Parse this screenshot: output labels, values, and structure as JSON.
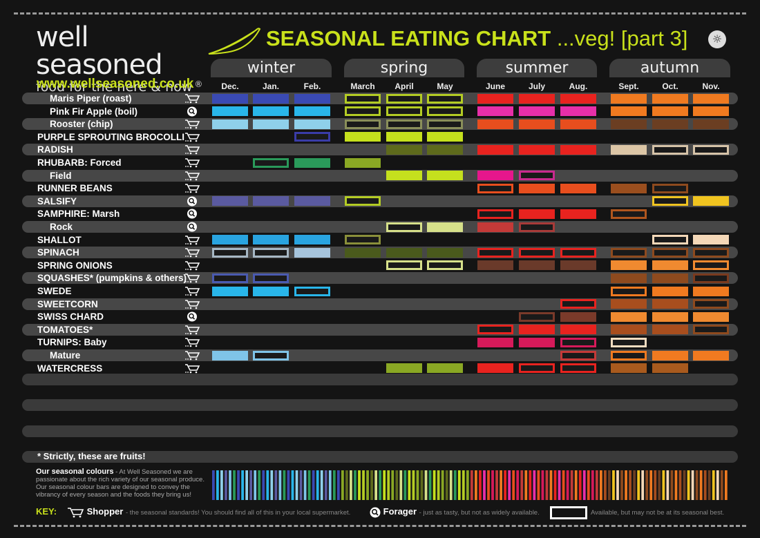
{
  "brand": {
    "name": "well seasoned",
    "tagline": "food for the here & now",
    "reg": "®",
    "website": "www.wellseasoned.co.uk"
  },
  "header": {
    "title": "SEASONAL EATING CHART",
    "subtitle": "...veg! [part 3]"
  },
  "seasons": [
    "winter",
    "spring",
    "summer",
    "autumn"
  ],
  "months": [
    "Dec.",
    "Jan.",
    "Feb.",
    "March",
    "April",
    "May",
    "June",
    "July",
    "Aug.",
    "Sept.",
    "Oct.",
    "Nov."
  ],
  "rows": [
    {
      "label": "Maris Piper (roast)",
      "sub": true,
      "icon": "cart-icon",
      "cells": [
        [
          "f",
          "#3a4ab3"
        ],
        [
          "f",
          "#3a4ab3"
        ],
        [
          "f",
          "#3a4ab3"
        ],
        [
          "o",
          "#b4cc24"
        ],
        [
          "o",
          "#b4cc24"
        ],
        [
          "o",
          "#b4cc24"
        ],
        [
          "f",
          "#e8231f"
        ],
        [
          "f",
          "#e8231f"
        ],
        [
          "f",
          "#e8231f"
        ],
        [
          "f",
          "#f07a20"
        ],
        [
          "f",
          "#f07a20"
        ],
        [
          "f",
          "#f07a20"
        ]
      ]
    },
    {
      "label": "Pink Fir Apple (boil)",
      "sub": true,
      "icon": "forager-icon",
      "cells": [
        [
          "f",
          "#29b6ea"
        ],
        [
          "f",
          "#29b6ea"
        ],
        [
          "f",
          "#29b6ea"
        ],
        [
          "o",
          "#b4cc24"
        ],
        [
          "o",
          "#b4cc24"
        ],
        [
          "o",
          "#b4cc24"
        ],
        [
          "f",
          "#e72fa9"
        ],
        [
          "f",
          "#e72fa9"
        ],
        [
          "f",
          "#e72fa9"
        ],
        [
          "f",
          "#f07a20"
        ],
        [
          "f",
          "#f07a20"
        ],
        [
          "f",
          "#f07a20"
        ]
      ]
    },
    {
      "label": "Rooster (chip)",
      "sub": true,
      "icon": "cart-icon",
      "cells": [
        [
          "f",
          "#8fd0ea"
        ],
        [
          "f",
          "#8fd0ea"
        ],
        [
          "f",
          "#8fd0ea"
        ],
        [
          "o",
          "#8a8f5a"
        ],
        [
          "o",
          "#8a8f5a"
        ],
        [
          "o",
          "#8a8f5a"
        ],
        [
          "f",
          "#e84e1e"
        ],
        [
          "f",
          "#e84e1e"
        ],
        [
          "f",
          "#e84e1e"
        ],
        [
          "f",
          "#6b3e22"
        ],
        [
          "f",
          "#6b3e22"
        ],
        [
          "f",
          "#6b3e22"
        ]
      ]
    },
    {
      "label": "PURPLE SPROUTING BROCOLLI",
      "sub": false,
      "icon": "cart-icon",
      "cells": [
        null,
        null,
        [
          "o",
          "#3a3ca8"
        ],
        [
          "f",
          "#c5e01d"
        ],
        [
          "f",
          "#c5e01d"
        ],
        [
          "f",
          "#c5e01d"
        ],
        null,
        null,
        null,
        null,
        null,
        null
      ]
    },
    {
      "label": "RADISH",
      "sub": false,
      "icon": "cart-icon",
      "cells": [
        null,
        null,
        null,
        null,
        [
          "f",
          "#5e6a1c"
        ],
        [
          "f",
          "#5e6a1c"
        ],
        [
          "f",
          "#e8231f"
        ],
        [
          "f",
          "#e8231f"
        ],
        [
          "f",
          "#e8231f"
        ],
        [
          "f",
          "#dcc6a6"
        ],
        [
          "o",
          "#d6c3a8"
        ],
        [
          "o",
          "#d6c3a8"
        ]
      ]
    },
    {
      "label": "RHUBARB: Forced",
      "sub": false,
      "icon": "cart-icon",
      "cells": [
        null,
        [
          "o",
          "#2a9a5a"
        ],
        [
          "f",
          "#2a9a5a"
        ],
        [
          "f",
          "#8aa824"
        ],
        null,
        null,
        null,
        null,
        null,
        null,
        null,
        null
      ]
    },
    {
      "label": "Field",
      "sub": true,
      "icon": "cart-icon",
      "cells": [
        null,
        null,
        null,
        null,
        [
          "f",
          "#c5e01d"
        ],
        [
          "f",
          "#c5e01d"
        ],
        [
          "f",
          "#e6168c"
        ],
        [
          "o",
          "#c92a8f"
        ],
        null,
        null,
        null,
        null
      ]
    },
    {
      "label": "RUNNER BEANS",
      "sub": false,
      "icon": "cart-icon",
      "cells": [
        null,
        null,
        null,
        null,
        null,
        null,
        [
          "o",
          "#e84e1e"
        ],
        [
          "f",
          "#e84e1e"
        ],
        [
          "f",
          "#e84e1e"
        ],
        [
          "f",
          "#9a4e1e"
        ],
        [
          "o",
          "#8e4a1e"
        ],
        null
      ]
    },
    {
      "label": "SALSIFY",
      "sub": false,
      "icon": "forager-icon",
      "cells": [
        [
          "f",
          "#5a5aa0"
        ],
        [
          "f",
          "#5a5aa0"
        ],
        [
          "f",
          "#5a5aa0"
        ],
        [
          "o",
          "#b4cc24"
        ],
        null,
        null,
        null,
        null,
        null,
        null,
        [
          "o",
          "#f0c420"
        ],
        [
          "f",
          "#f0c420"
        ]
      ]
    },
    {
      "label": "SAMPHIRE: Marsh",
      "sub": false,
      "icon": "forager-icon",
      "cells": [
        null,
        null,
        null,
        null,
        null,
        null,
        [
          "o",
          "#e8231f"
        ],
        [
          "f",
          "#e8231f"
        ],
        [
          "f",
          "#e8231f"
        ],
        [
          "o",
          "#b0561e"
        ],
        null,
        null
      ]
    },
    {
      "label": "Rock",
      "sub": true,
      "icon": "forager-icon",
      "cells": [
        null,
        null,
        null,
        null,
        [
          "o",
          "#d6e08a"
        ],
        [
          "f",
          "#d6e08a"
        ],
        [
          "f",
          "#c43a38"
        ],
        [
          "o",
          "#a83a38"
        ],
        null,
        null,
        null,
        null
      ]
    },
    {
      "label": "SHALLOT",
      "sub": false,
      "icon": "cart-icon",
      "cells": [
        [
          "f",
          "#29a4e0"
        ],
        [
          "f",
          "#29a4e0"
        ],
        [
          "f",
          "#29a4e0"
        ],
        [
          "o",
          "#8a8f3a"
        ],
        null,
        null,
        null,
        null,
        null,
        null,
        [
          "o",
          "#f4d8b8"
        ],
        [
          "f",
          "#f4d8b8"
        ]
      ]
    },
    {
      "label": "SPINACH",
      "sub": false,
      "icon": "cart-icon",
      "cells": [
        [
          "o",
          "#a6b7c4"
        ],
        [
          "o",
          "#a6b7c4"
        ],
        [
          "f",
          "#a6c4dc"
        ],
        [
          "f",
          "#4a5a1c"
        ],
        [
          "f",
          "#4a5a1c"
        ],
        [
          "f",
          "#4a5a1c"
        ],
        [
          "o",
          "#e8231f"
        ],
        [
          "o",
          "#e8231f"
        ],
        [
          "o",
          "#e8231f"
        ],
        [
          "o",
          "#8e4a1e"
        ],
        [
          "o",
          "#8e4a1e"
        ],
        [
          "o",
          "#8e4a1e"
        ]
      ]
    },
    {
      "label": "SPRING ONIONS",
      "sub": false,
      "icon": "cart-icon",
      "cells": [
        null,
        null,
        null,
        null,
        [
          "o",
          "#d6e08a"
        ],
        [
          "o",
          "#d6e08a"
        ],
        [
          "f",
          "#6a3a2a"
        ],
        [
          "f",
          "#6a3a2a"
        ],
        [
          "f",
          "#6a3a2a"
        ],
        [
          "f",
          "#f08a30"
        ],
        [
          "f",
          "#f08a30"
        ],
        [
          "o",
          "#f08a30"
        ]
      ]
    },
    {
      "label": "SQUASHES* (pumpkins & others)",
      "sub": false,
      "icon": "cart-icon",
      "cells": [
        [
          "o",
          "#4a5ab0"
        ],
        [
          "o",
          "#4a5ab0"
        ],
        null,
        null,
        null,
        null,
        null,
        null,
        null,
        [
          "f",
          "#8e4a1e"
        ],
        [
          "f",
          "#8e4a1e"
        ],
        [
          "o",
          "#7a3a1e"
        ]
      ]
    },
    {
      "label": "SWEDE",
      "sub": false,
      "icon": "cart-icon",
      "cells": [
        [
          "f",
          "#29b6ea"
        ],
        [
          "f",
          "#29b6ea"
        ],
        [
          "o",
          "#29b6ea"
        ],
        null,
        null,
        null,
        null,
        null,
        null,
        [
          "o",
          "#f07a20"
        ],
        [
          "f",
          "#f07a20"
        ],
        [
          "f",
          "#f07a20"
        ]
      ]
    },
    {
      "label": "SWEETCORN",
      "sub": false,
      "icon": "cart-icon",
      "cells": [
        null,
        null,
        null,
        null,
        null,
        null,
        null,
        null,
        [
          "o",
          "#e8231f"
        ],
        [
          "f",
          "#a84e1e"
        ],
        [
          "f",
          "#a84e1e"
        ],
        [
          "o",
          "#8e4a1e"
        ]
      ]
    },
    {
      "label": "SWISS CHARD",
      "sub": false,
      "icon": "forager-icon",
      "cells": [
        null,
        null,
        null,
        null,
        null,
        null,
        null,
        [
          "o",
          "#7a3a2a"
        ],
        [
          "f",
          "#7a3a2a"
        ],
        [
          "f",
          "#f08a30"
        ],
        [
          "f",
          "#f08a30"
        ],
        [
          "f",
          "#f08a30"
        ]
      ]
    },
    {
      "label": "TOMATOES*",
      "sub": false,
      "icon": "cart-icon",
      "cells": [
        null,
        null,
        null,
        null,
        null,
        null,
        [
          "o",
          "#e8231f"
        ],
        [
          "f",
          "#e8231f"
        ],
        [
          "f",
          "#e8231f"
        ],
        [
          "f",
          "#a84e1e"
        ],
        [
          "f",
          "#a84e1e"
        ],
        [
          "o",
          "#8e4a1e"
        ]
      ]
    },
    {
      "label": "TURNIPS: Baby",
      "sub": false,
      "icon": "cart-icon",
      "cells": [
        null,
        null,
        null,
        null,
        null,
        null,
        [
          "f",
          "#d61a5a"
        ],
        [
          "f",
          "#d61a5a"
        ],
        [
          "o",
          "#d61a5a"
        ],
        [
          "o",
          "#f0dcc0"
        ],
        null,
        null
      ]
    },
    {
      "label": "Mature",
      "sub": true,
      "icon": "cart-icon",
      "cells": [
        [
          "f",
          "#7fc4e8"
        ],
        [
          "o",
          "#7fc4e8"
        ],
        null,
        null,
        null,
        null,
        null,
        null,
        [
          "o",
          "#c43a38"
        ],
        [
          "o",
          "#f07a20"
        ],
        [
          "f",
          "#f07a20"
        ],
        [
          "f",
          "#f07a20"
        ]
      ]
    },
    {
      "label": "WATERCRESS",
      "sub": false,
      "icon": "cart-icon",
      "cells": [
        null,
        null,
        null,
        null,
        [
          "f",
          "#8aa824"
        ],
        [
          "f",
          "#8aa824"
        ],
        [
          "f",
          "#e8231f"
        ],
        [
          "o",
          "#e8231f"
        ],
        [
          "o",
          "#e8231f"
        ],
        [
          "f",
          "#a85a1e"
        ],
        [
          "f",
          "#a85a1e"
        ],
        null
      ]
    }
  ],
  "footnote": "* Strictly, these are fruits!",
  "colours": {
    "heading": "Our seasonal colours",
    "text": "- At Well Seasoned we are passionate about the rich variety of our seasonal produce. Our seasonal colour bars are designed to convey the vibrancy of every season and the foods they bring us!"
  },
  "key": {
    "label": "KEY:",
    "shopper": "Shopper",
    "shopper_desc": "- the seasonal standards! You should find all of this in your local supermarket.",
    "forager": "Forager",
    "forager_desc": "- just as tasty, but not as widely available.",
    "box_desc": "Available, but may not be at its seasonal best."
  }
}
